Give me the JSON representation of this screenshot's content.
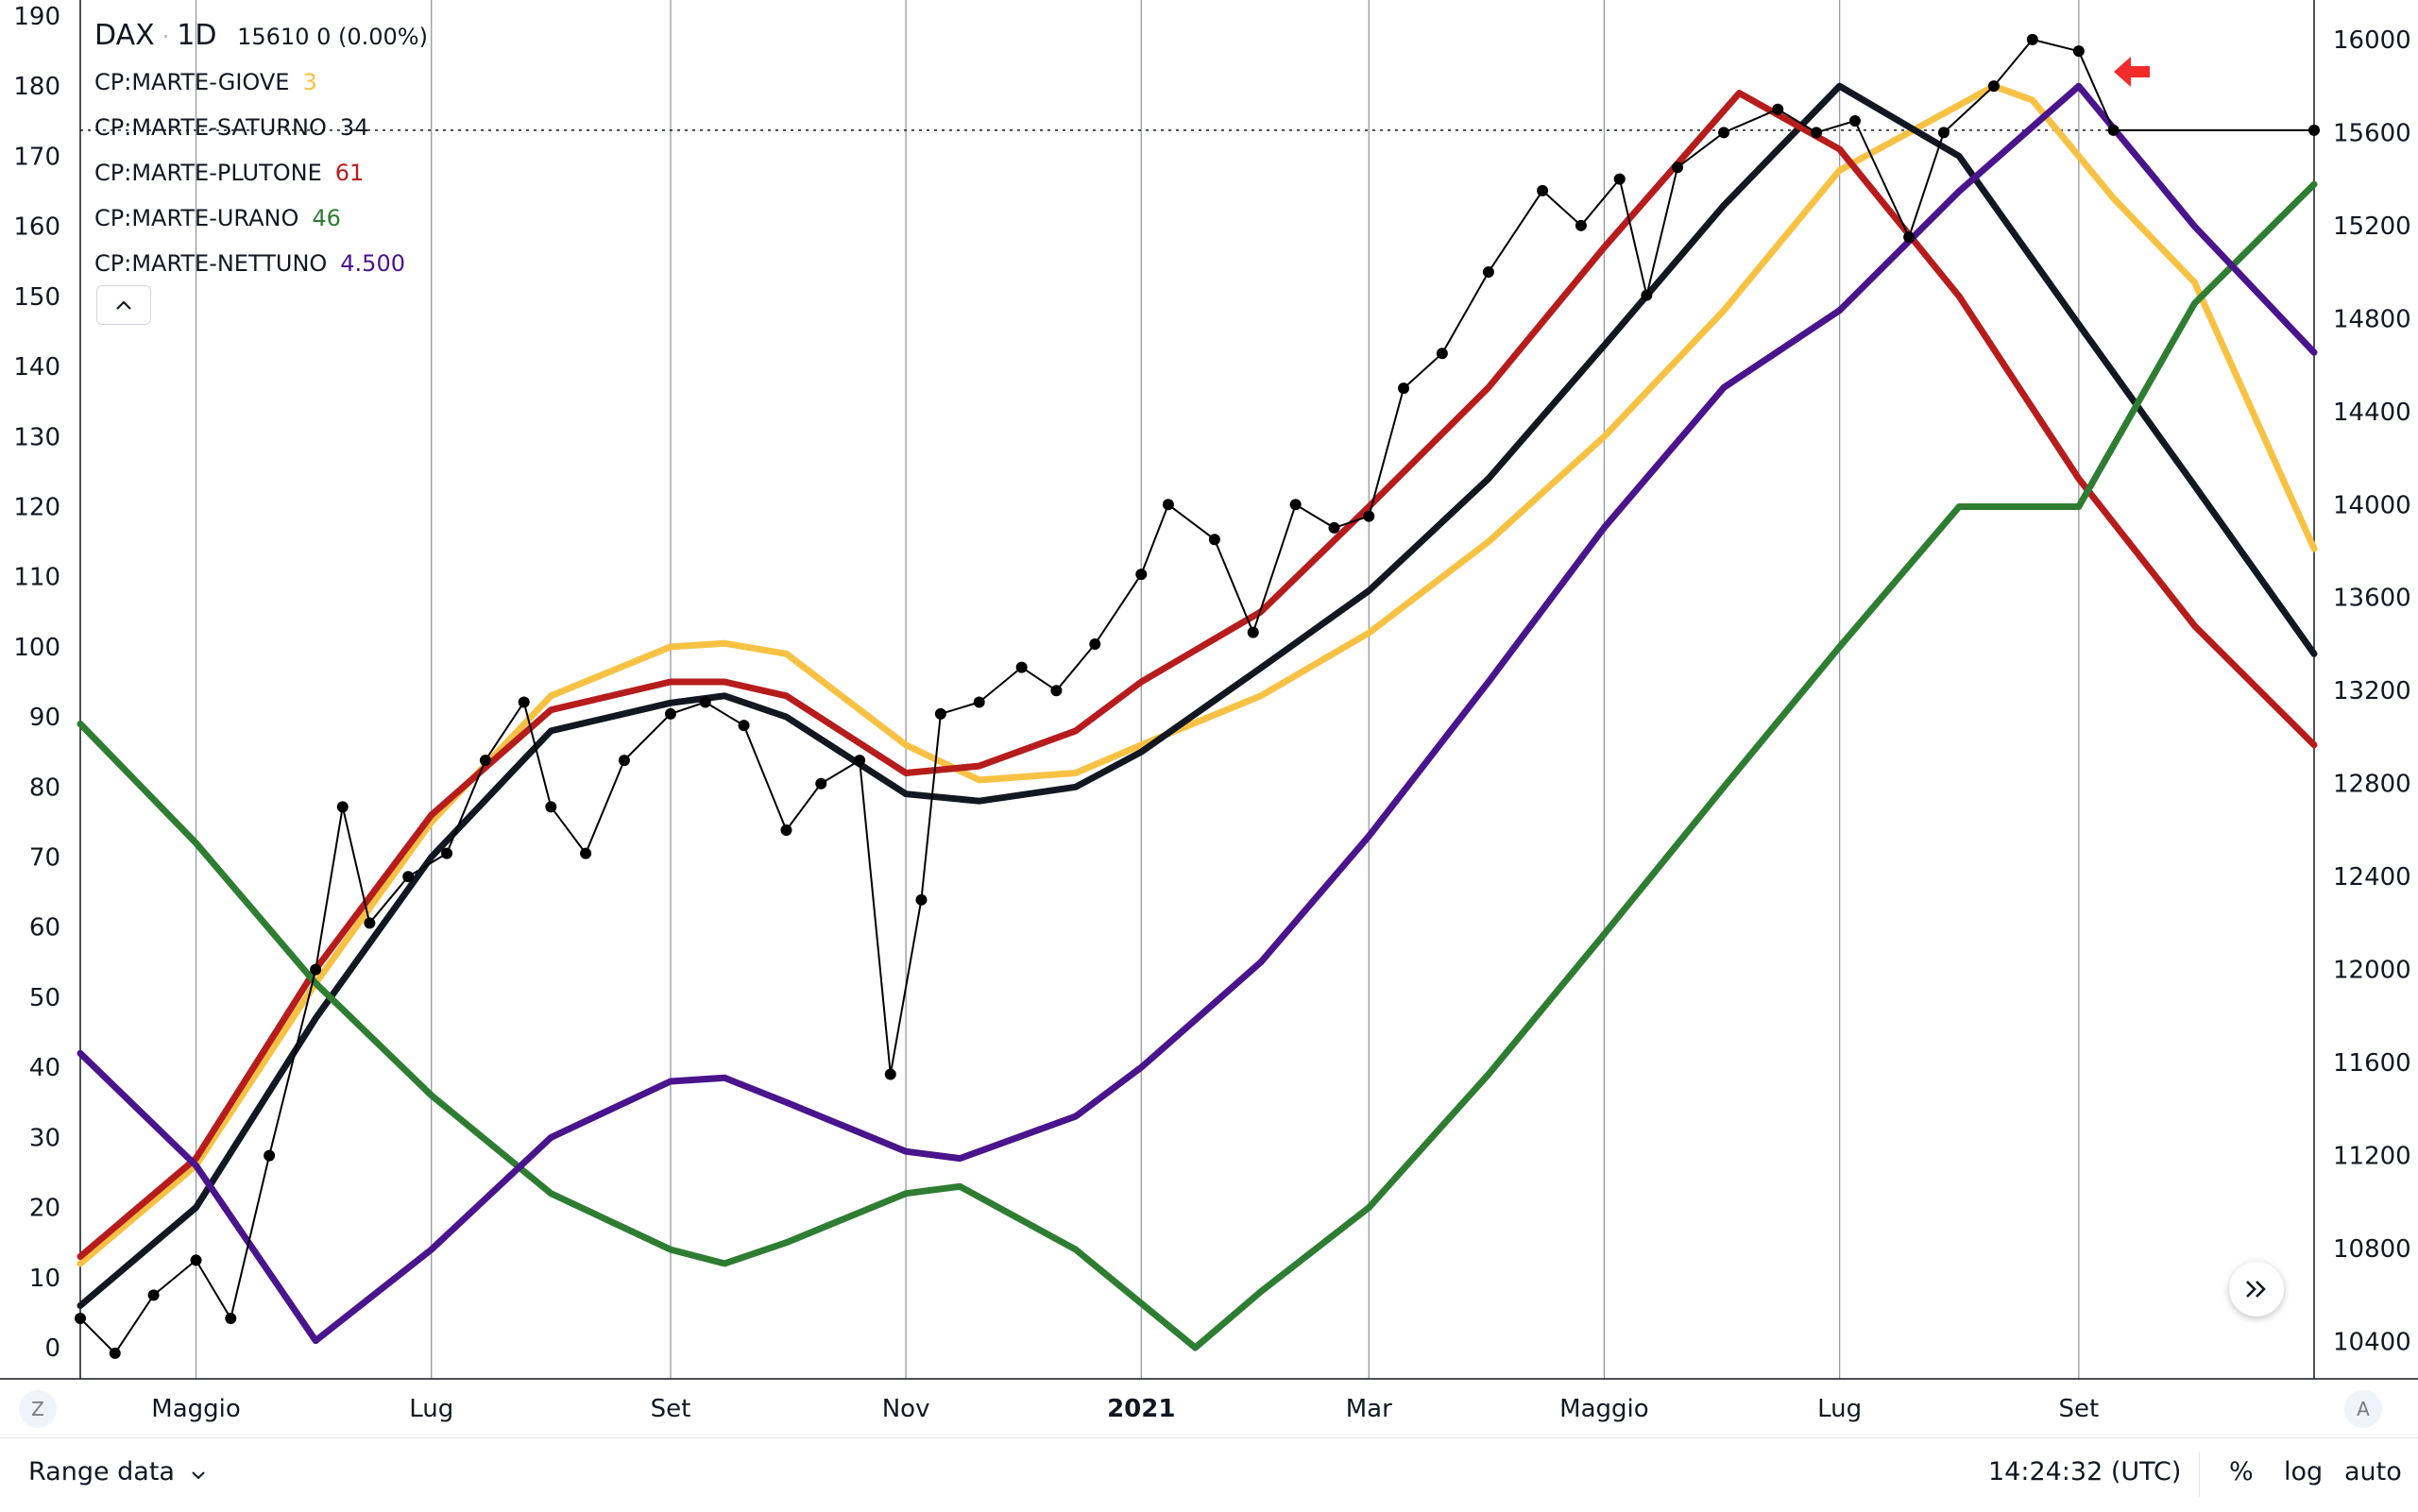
{
  "legend": {
    "symbol": "DAX",
    "interval": "1D",
    "quote": "15610 0 (0.00%)",
    "indicators": [
      {
        "label": "CP:MARTE-GIOVE",
        "value": "3",
        "color": "#f7c244"
      },
      {
        "label": "CP:MARTE-SATURNO",
        "value": "34",
        "color": "#131722"
      },
      {
        "label": "CP:MARTE-PLUTONE",
        "value": "61",
        "color": "#b71c1c"
      },
      {
        "label": "CP:MARTE-URANO",
        "value": "46",
        "color": "#2e7d32"
      },
      {
        "label": "CP:MARTE-NETTUNO",
        "value": "4.500",
        "color": "#4a148c"
      }
    ],
    "collapse_icon": "chevron-up-icon"
  },
  "bottom_bar": {
    "range_label": "Range data",
    "time": "14:24:32 (UTC)",
    "percent_label": "%",
    "log_label": "log",
    "auto_label": "auto"
  },
  "corner_left": "Z",
  "corner_right": "A",
  "scroll_icon": "double-chevron-right-icon",
  "colors": {
    "giove": "#f7c244",
    "saturno": "#131722",
    "plutone": "#b71c1c",
    "urano": "#2e7d32",
    "nettuno": "#4a148c",
    "price": "#000000",
    "marker": "#f22b2b"
  },
  "chart_data": {
    "type": "line",
    "x_axis": {
      "tick_labels": [
        "Maggio",
        "Lug",
        "Set",
        "Nov",
        "2021",
        "Mar",
        "Maggio",
        "Lug",
        "Set"
      ],
      "range": [
        "2020-04-01",
        "2021-11-01"
      ]
    },
    "y_left": {
      "ticks": [
        0,
        10,
        20,
        30,
        40,
        50,
        60,
        70,
        80,
        90,
        100,
        110,
        120,
        130,
        140,
        150,
        160,
        170,
        180,
        190
      ],
      "range": [
        0,
        190
      ]
    },
    "y_right": {
      "ticks": [
        10400,
        10800,
        11200,
        11600,
        12000,
        12400,
        12800,
        13200,
        13600,
        14000,
        14400,
        14800,
        15200,
        15600,
        16000
      ],
      "range": [
        10240,
        16170
      ]
    },
    "last_price": 15610,
    "series": [
      {
        "name": "CP:MARTE-GIOVE",
        "axis": "left",
        "points": [
          [
            "2020-04-01",
            12
          ],
          [
            "2020-05-01",
            26
          ],
          [
            "2020-06-01",
            52
          ],
          [
            "2020-07-01",
            75
          ],
          [
            "2020-08-01",
            93
          ],
          [
            "2020-09-01",
            100
          ],
          [
            "2020-09-15",
            100.5
          ],
          [
            "2020-10-01",
            99
          ],
          [
            "2020-11-01",
            86
          ],
          [
            "2020-11-20",
            81
          ],
          [
            "2020-12-15",
            82
          ],
          [
            "2021-01-01",
            86
          ],
          [
            "2021-02-01",
            93
          ],
          [
            "2021-03-01",
            102
          ],
          [
            "2021-04-01",
            115
          ],
          [
            "2021-05-01",
            130
          ],
          [
            "2021-06-01",
            148
          ],
          [
            "2021-07-01",
            168
          ],
          [
            "2021-08-10",
            180
          ],
          [
            "2021-08-20",
            178
          ],
          [
            "2021-09-10",
            164
          ],
          [
            "2021-10-01",
            152
          ],
          [
            "2021-11-01",
            114
          ]
        ]
      },
      {
        "name": "CP:MARTE-SATURNO",
        "axis": "left",
        "points": [
          [
            "2020-04-01",
            6
          ],
          [
            "2020-05-01",
            20
          ],
          [
            "2020-06-01",
            47
          ],
          [
            "2020-07-01",
            70
          ],
          [
            "2020-08-01",
            88
          ],
          [
            "2020-09-01",
            92
          ],
          [
            "2020-09-15",
            93
          ],
          [
            "2020-10-01",
            90
          ],
          [
            "2020-11-01",
            79
          ],
          [
            "2020-11-20",
            78
          ],
          [
            "2020-12-15",
            80
          ],
          [
            "2021-01-01",
            85
          ],
          [
            "2021-02-01",
            97
          ],
          [
            "2021-03-01",
            108
          ],
          [
            "2021-04-01",
            124
          ],
          [
            "2021-05-01",
            143
          ],
          [
            "2021-06-01",
            163
          ],
          [
            "2021-07-01",
            180
          ],
          [
            "2021-08-01",
            170
          ],
          [
            "2021-09-01",
            146
          ],
          [
            "2021-10-01",
            123
          ],
          [
            "2021-11-01",
            99
          ]
        ]
      },
      {
        "name": "CP:MARTE-PLUTONE",
        "axis": "left",
        "points": [
          [
            "2020-04-01",
            13
          ],
          [
            "2020-05-01",
            27
          ],
          [
            "2020-06-01",
            54
          ],
          [
            "2020-07-01",
            76
          ],
          [
            "2020-08-01",
            91
          ],
          [
            "2020-09-01",
            95
          ],
          [
            "2020-09-15",
            95
          ],
          [
            "2020-10-01",
            93
          ],
          [
            "2020-11-01",
            82
          ],
          [
            "2020-11-20",
            83
          ],
          [
            "2020-12-15",
            88
          ],
          [
            "2021-01-01",
            95
          ],
          [
            "2021-02-01",
            105
          ],
          [
            "2021-03-01",
            120
          ],
          [
            "2021-04-01",
            137
          ],
          [
            "2021-05-01",
            157
          ],
          [
            "2021-06-05",
            179
          ],
          [
            "2021-07-01",
            171
          ],
          [
            "2021-08-01",
            150
          ],
          [
            "2021-09-01",
            124
          ],
          [
            "2021-10-01",
            103
          ],
          [
            "2021-11-01",
            86
          ]
        ]
      },
      {
        "name": "CP:MARTE-URANO",
        "axis": "left",
        "points": [
          [
            "2020-04-01",
            89
          ],
          [
            "2020-05-01",
            72
          ],
          [
            "2020-06-01",
            52
          ],
          [
            "2020-07-01",
            36
          ],
          [
            "2020-08-01",
            22
          ],
          [
            "2020-09-01",
            14
          ],
          [
            "2020-09-15",
            12
          ],
          [
            "2020-10-01",
            15
          ],
          [
            "2020-11-01",
            22
          ],
          [
            "2020-11-15",
            23
          ],
          [
            "2020-12-15",
            14
          ],
          [
            "2021-01-15",
            0
          ],
          [
            "2021-02-01",
            8
          ],
          [
            "2021-03-01",
            20
          ],
          [
            "2021-04-01",
            39
          ],
          [
            "2021-05-01",
            59
          ],
          [
            "2021-06-01",
            80
          ],
          [
            "2021-07-01",
            100
          ],
          [
            "2021-08-01",
            120
          ],
          [
            "2021-09-01",
            120
          ],
          [
            "2021-10-01",
            149
          ],
          [
            "2021-11-01",
            166
          ]
        ]
      },
      {
        "name": "CP:MARTE-NETTUNO",
        "axis": "left",
        "points": [
          [
            "2020-04-01",
            42
          ],
          [
            "2020-05-01",
            26
          ],
          [
            "2020-06-01",
            1
          ],
          [
            "2020-07-01",
            14
          ],
          [
            "2020-08-01",
            30
          ],
          [
            "2020-09-01",
            38
          ],
          [
            "2020-09-15",
            38.5
          ],
          [
            "2020-10-01",
            35
          ],
          [
            "2020-11-01",
            28
          ],
          [
            "2020-11-15",
            27
          ],
          [
            "2020-12-15",
            33
          ],
          [
            "2021-01-01",
            40
          ],
          [
            "2021-02-01",
            55
          ],
          [
            "2021-03-01",
            73
          ],
          [
            "2021-04-01",
            95
          ],
          [
            "2021-05-01",
            117
          ],
          [
            "2021-06-01",
            137
          ],
          [
            "2021-07-01",
            148
          ],
          [
            "2021-08-01",
            165
          ],
          [
            "2021-09-01",
            180
          ],
          [
            "2021-10-01",
            160
          ],
          [
            "2021-11-01",
            142
          ]
        ]
      },
      {
        "name": "DAX",
        "axis": "right",
        "points": [
          [
            "2020-04-01",
            10500
          ],
          [
            "2020-04-10",
            10350
          ],
          [
            "2020-04-20",
            10600
          ],
          [
            "2020-05-01",
            10750
          ],
          [
            "2020-05-10",
            10500
          ],
          [
            "2020-05-20",
            11200
          ],
          [
            "2020-06-01",
            12000
          ],
          [
            "2020-06-08",
            12700
          ],
          [
            "2020-06-15",
            12200
          ],
          [
            "2020-06-25",
            12400
          ],
          [
            "2020-07-05",
            12500
          ],
          [
            "2020-07-15",
            12900
          ],
          [
            "2020-07-25",
            13150
          ],
          [
            "2020-08-01",
            12700
          ],
          [
            "2020-08-10",
            12500
          ],
          [
            "2020-08-20",
            12900
          ],
          [
            "2020-09-01",
            13100
          ],
          [
            "2020-09-10",
            13150
          ],
          [
            "2020-09-20",
            13050
          ],
          [
            "2020-10-01",
            12600
          ],
          [
            "2020-10-10",
            12800
          ],
          [
            "2020-10-20",
            12900
          ],
          [
            "2020-10-28",
            11550
          ],
          [
            "2020-11-05",
            12300
          ],
          [
            "2020-11-10",
            13100
          ],
          [
            "2020-11-20",
            13150
          ],
          [
            "2020-12-01",
            13300
          ],
          [
            "2020-12-10",
            13200
          ],
          [
            "2020-12-20",
            13400
          ],
          [
            "2021-01-01",
            13700
          ],
          [
            "2021-01-08",
            14000
          ],
          [
            "2021-01-20",
            13850
          ],
          [
            "2021-01-30",
            13450
          ],
          [
            "2021-02-10",
            14000
          ],
          [
            "2021-02-20",
            13900
          ],
          [
            "2021-03-01",
            13950
          ],
          [
            "2021-03-10",
            14500
          ],
          [
            "2021-03-20",
            14650
          ],
          [
            "2021-04-01",
            15000
          ],
          [
            "2021-04-15",
            15350
          ],
          [
            "2021-04-25",
            15200
          ],
          [
            "2021-05-05",
            15400
          ],
          [
            "2021-05-12",
            14900
          ],
          [
            "2021-05-20",
            15450
          ],
          [
            "2021-06-01",
            15600
          ],
          [
            "2021-06-15",
            15700
          ],
          [
            "2021-06-25",
            15600
          ],
          [
            "2021-07-05",
            15650
          ],
          [
            "2021-07-19",
            15150
          ],
          [
            "2021-07-28",
            15600
          ],
          [
            "2021-08-10",
            15800
          ],
          [
            "2021-08-20",
            16000
          ],
          [
            "2021-09-01",
            15950
          ],
          [
            "2021-09-10",
            15610
          ],
          [
            "2021-11-01",
            15610
          ]
        ]
      }
    ]
  }
}
